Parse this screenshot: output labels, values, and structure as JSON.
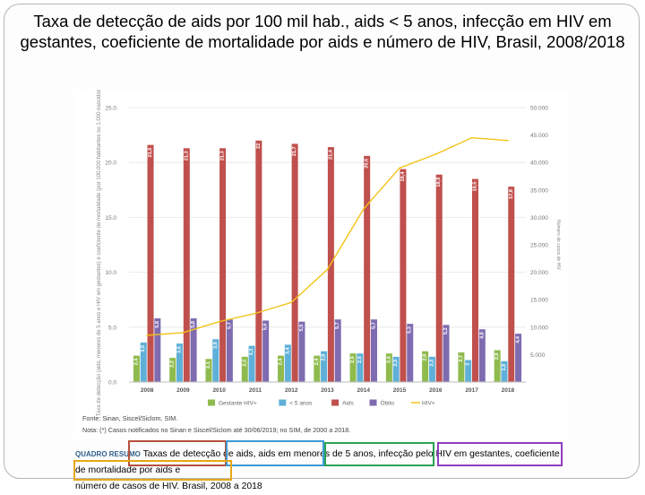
{
  "title": "Taxa de detecção de aids por 100 mil hab., aids < 5 anos, infecção em HIV em gestantes, coeficiente de mortalidade por aids e número de HIV, Brasil, 2008/2018",
  "chart_data": {
    "type": "bar",
    "categories": [
      "2008",
      "2009",
      "2010",
      "2011",
      "2012",
      "2013",
      "2014",
      "2015",
      "2016",
      "2017",
      "2018"
    ],
    "series": [
      {
        "name": "Gestante HIV+",
        "axis": "left",
        "color": "#8fbb4e",
        "values": [
          2.4,
          2.2,
          2.1,
          2.3,
          2.4,
          2.4,
          2.6,
          2.6,
          2.8,
          2.7,
          2.9
        ]
      },
      {
        "name": "< 5 anos",
        "axis": "left",
        "color": "#5fb0d8",
        "values": [
          3.6,
          3.5,
          3.9,
          3.3,
          3.4,
          2.8,
          2.6,
          2.3,
          2.3,
          2.0,
          1.9
        ]
      },
      {
        "name": "Aids",
        "axis": "left",
        "color": "#c0504d",
        "values": [
          21.6,
          21.3,
          21.3,
          22.0,
          21.7,
          21.4,
          20.6,
          19.4,
          18.9,
          18.5,
          17.8
        ]
      },
      {
        "name": "Óbito",
        "axis": "left",
        "color": "#7f6bb0",
        "values": [
          5.8,
          5.8,
          5.7,
          5.6,
          5.5,
          5.7,
          5.7,
          5.3,
          5.2,
          4.8,
          4.4
        ]
      },
      {
        "name": "HIV+",
        "axis": "right",
        "type": "line",
        "color": "#f2c318",
        "values": [
          8500,
          9000,
          11000,
          12500,
          14500,
          20500,
          31500,
          39000,
          41500,
          44500,
          44000
        ]
      }
    ],
    "ylim": [
      0,
      25
    ],
    "y_ticks": [
      "0.0",
      "5.0",
      "10.0",
      "15.0",
      "20.0",
      "25.0"
    ],
    "y2lim": [
      0,
      50000
    ],
    "y2_ticks": [
      "",
      "5.000",
      "10.000",
      "15.000",
      "20.000",
      "25.000",
      "30.000",
      "35.000",
      "40.000",
      "45.000",
      "50.000"
    ],
    "ylabel": "Taxa de detecção (aids, menores de 5 anos e HIV em gestantes) e coeficiente de mortalidade (por 100.000 habitantes ou 1.000 nascidos vivos)",
    "y2label": "Número de casos de HIV",
    "legend": [
      "Gestante HIV+",
      "< 5 anos",
      "Aids",
      "Óbito",
      "HIV+"
    ],
    "legend_position": "bottom"
  },
  "notes": {
    "source": "Fonte: Sinan, Siscel/Siclom, SIM.",
    "note": "Nota: (*) Casos notificados no Sinan e Siscel/Siclom até 30/06/2019; no SIM, de 2000 a 2018."
  },
  "caption": {
    "part1": "QUADRO RESUMO",
    "part2": "Taxas de detecção de aids,",
    "part3": "aids em menores de 5 anos",
    "part4": "infecção pelo HIV em gestantes",
    "part5": "coeficiente de mortalidade por aids e",
    "part6": "número de casos de HIV. Brasil, 2008 a 2018",
    "box_colors": [
      "#b5513c",
      "#3d9bd3",
      "#2aa352",
      "#8e3fbf",
      "#e6a817"
    ]
  }
}
